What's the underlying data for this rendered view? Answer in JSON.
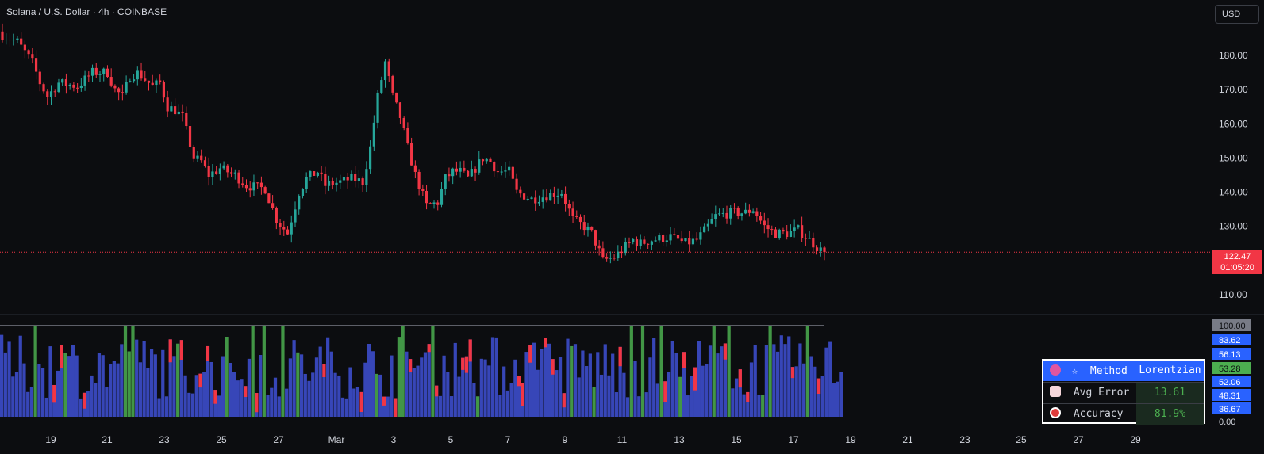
{
  "header": {
    "symbol_title": "Solana / U.S. Dollar · 4h · COINBASE",
    "currency_button": "USD"
  },
  "price_tag": {
    "price": "122.47",
    "countdown": "01:05:20"
  },
  "colors": {
    "up": "#26a69a",
    "down": "#f23645",
    "bar_blue": "#3f51d6",
    "bar_green": "#4caf50",
    "bar_red": "#f23645",
    "accent": "#2962ff"
  },
  "chart_data": [
    {
      "type": "candlestick",
      "title": "Solana / U.S. Dollar · 4h · COINBASE",
      "ylim": [
        103,
        191
      ],
      "yticks": [
        "110.00",
        "120.00",
        "130.00",
        "140.00",
        "150.00",
        "160.00",
        "170.00",
        "180.00"
      ],
      "xticks": [
        "19",
        "21",
        "23",
        "25",
        "27",
        "Mar",
        "3",
        "5",
        "7",
        "9",
        "11",
        "13",
        "15",
        "17",
        "19",
        "21",
        "23",
        "25",
        "27",
        "29"
      ],
      "current_price": 122.47,
      "close_path": [
        [
          0,
          186
        ],
        [
          4,
          184
        ],
        [
          8,
          178
        ],
        [
          10,
          172
        ],
        [
          12,
          168
        ],
        [
          15,
          172
        ],
        [
          20,
          171
        ],
        [
          24,
          175
        ],
        [
          28,
          175
        ],
        [
          30,
          170
        ],
        [
          32,
          168
        ],
        [
          34,
          174
        ],
        [
          36,
          175
        ],
        [
          40,
          171
        ],
        [
          42,
          172
        ],
        [
          44,
          165
        ],
        [
          46,
          164
        ],
        [
          48,
          162
        ],
        [
          51,
          150
        ],
        [
          53,
          149
        ],
        [
          55,
          145
        ],
        [
          58,
          147
        ],
        [
          62,
          145
        ],
        [
          65,
          142
        ],
        [
          70,
          141
        ],
        [
          73,
          132
        ],
        [
          76,
          128
        ],
        [
          79,
          140
        ],
        [
          81,
          144
        ],
        [
          84,
          146
        ],
        [
          86,
          142
        ],
        [
          90,
          143
        ],
        [
          93,
          144
        ],
        [
          96,
          143
        ],
        [
          98,
          153
        ],
        [
          100,
          168
        ],
        [
          102,
          178
        ],
        [
          104,
          168
        ],
        [
          106,
          162
        ],
        [
          108,
          153
        ],
        [
          110,
          145
        ],
        [
          113,
          136
        ],
        [
          116,
          137
        ],
        [
          118,
          144
        ],
        [
          120,
          146
        ],
        [
          122,
          146
        ],
        [
          124,
          144
        ],
        [
          126,
          147
        ],
        [
          128,
          150
        ],
        [
          130,
          149
        ],
        [
          132,
          146
        ],
        [
          135,
          146
        ],
        [
          137,
          140
        ],
        [
          141,
          138
        ],
        [
          145,
          139
        ],
        [
          149,
          140
        ],
        [
          152,
          132
        ],
        [
          155,
          130
        ],
        [
          157,
          128
        ],
        [
          160,
          120
        ],
        [
          163,
          121
        ],
        [
          166,
          124
        ],
        [
          168,
          126
        ],
        [
          170,
          125
        ],
        [
          173,
          126
        ],
        [
          178,
          127
        ],
        [
          182,
          125
        ],
        [
          185,
          126
        ],
        [
          188,
          130
        ],
        [
          190,
          133
        ],
        [
          194,
          134
        ],
        [
          198,
          134
        ],
        [
          200,
          135
        ],
        [
          203,
          130
        ],
        [
          206,
          128
        ],
        [
          209,
          128
        ],
        [
          212,
          129
        ],
        [
          215,
          126
        ],
        [
          218,
          123
        ],
        [
          219,
          122.47
        ]
      ],
      "n_candles": 220
    },
    {
      "type": "bar",
      "title": "",
      "ylim": [
        0,
        100
      ],
      "axis_labels": [
        "100.00",
        "83.62",
        "56.13",
        "53.28",
        "52.06",
        "48.31",
        "36.67",
        "0.00"
      ],
      "n_bars": 225
    }
  ],
  "stats_table": {
    "header_label": "Method",
    "header_value": "Lorentzian",
    "rows": [
      {
        "label": "Avg Error",
        "value": "13.61"
      },
      {
        "label": "Accuracy",
        "value": "81.9%"
      }
    ]
  }
}
